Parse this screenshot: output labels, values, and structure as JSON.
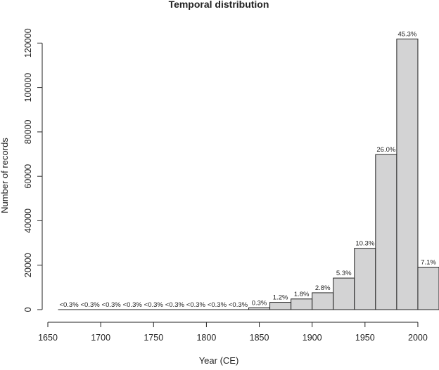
{
  "chart_data": {
    "type": "bar",
    "title": "Temporal distribution",
    "xlabel": "Year (CE)",
    "ylabel": "Number of records",
    "xlim": [
      1650,
      2020
    ],
    "ylim": [
      0,
      122000
    ],
    "grid": false,
    "bar_color": "#d3d3d4",
    "edge_color": "#222222",
    "x_ticks": [
      "1650",
      "1700",
      "1750",
      "1800",
      "1850",
      "1900",
      "1950",
      "2000"
    ],
    "y_ticks": [
      "0",
      "20000",
      "40000",
      "60000",
      "80000",
      "100000",
      "120000"
    ],
    "bins": [
      {
        "start": 1660,
        "end": 1680,
        "value": 0,
        "label": "<0.3%"
      },
      {
        "start": 1680,
        "end": 1700,
        "value": 0,
        "label": "<0.3%"
      },
      {
        "start": 1700,
        "end": 1720,
        "value": 0,
        "label": "<0.3%"
      },
      {
        "start": 1720,
        "end": 1740,
        "value": 0,
        "label": "<0.3%"
      },
      {
        "start": 1740,
        "end": 1760,
        "value": 0,
        "label": "<0.3%"
      },
      {
        "start": 1760,
        "end": 1780,
        "value": 0,
        "label": "<0.3%"
      },
      {
        "start": 1780,
        "end": 1800,
        "value": 0,
        "label": "<0.3%"
      },
      {
        "start": 1800,
        "end": 1820,
        "value": 0,
        "label": "<0.3%"
      },
      {
        "start": 1820,
        "end": 1840,
        "value": 0,
        "label": "<0.3%"
      },
      {
        "start": 1840,
        "end": 1860,
        "value": 800,
        "label": "0.3%"
      },
      {
        "start": 1860,
        "end": 1880,
        "value": 3300,
        "label": "1.2%"
      },
      {
        "start": 1880,
        "end": 1900,
        "value": 4800,
        "label": "1.8%"
      },
      {
        "start": 1900,
        "end": 1920,
        "value": 7600,
        "label": "2.8%"
      },
      {
        "start": 1920,
        "end": 1940,
        "value": 14200,
        "label": "5.3%"
      },
      {
        "start": 1940,
        "end": 1960,
        "value": 27600,
        "label": "10.3%"
      },
      {
        "start": 1960,
        "end": 1980,
        "value": 69800,
        "label": "26.0%"
      },
      {
        "start": 1980,
        "end": 2000,
        "value": 121800,
        "label": "45.3%"
      },
      {
        "start": 2000,
        "end": 2020,
        "value": 19100,
        "label": "7.1%"
      }
    ]
  }
}
